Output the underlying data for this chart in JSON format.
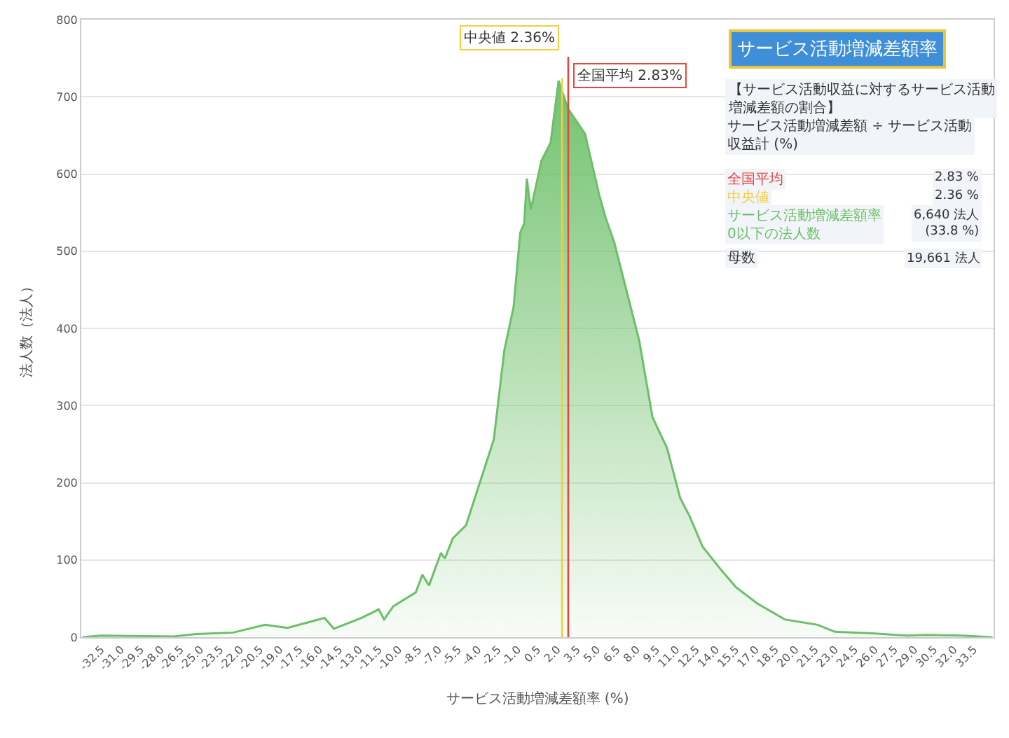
{
  "chart_data": {
    "type": "area",
    "title": "サービス活動増減差額率",
    "xlabel": "サービス活動増減差額率 (%)",
    "ylabel": "法人数（法人）",
    "series": [
      {
        "color": "#6cbf68",
        "x": [
          -33.9,
          -32.5,
          -27,
          -25.3,
          -22.5,
          -20.1,
          -18.4,
          -15.6,
          -14.9,
          -12.8,
          -11.5,
          -11.1,
          -10.4,
          -8.7,
          -8.2,
          -7.7,
          -6.8,
          -6.5,
          -5.9,
          -4.9,
          -3.9,
          -2.8,
          -2.0,
          -1.3,
          -0.8,
          -0.5,
          -0.3,
          0.0,
          0.8,
          1.5,
          2.1,
          2.8,
          4.1,
          5.2,
          5.7,
          6.3,
          8.2,
          9.2,
          10.3,
          11.3,
          12.0,
          13.0,
          14.4,
          15.5,
          17.1,
          19.2,
          21.7,
          23.0,
          25.8,
          28.5,
          29.9,
          32.6,
          34.9
        ],
        "values": [
          0,
          2,
          1,
          4,
          6,
          16,
          12,
          25,
          11,
          25,
          36,
          23,
          40,
          58,
          81,
          67,
          109,
          102,
          128,
          145,
          198,
          256,
          372,
          428,
          524,
          536,
          594,
          554,
          617,
          641,
          721,
          685,
          652,
          571,
          541,
          512,
          384,
          285,
          245,
          180,
          157,
          117,
          87,
          65,
          44,
          23,
          16,
          7,
          5,
          2,
          3,
          2,
          0
        ]
      }
    ],
    "xlim": [
      -34,
      35
    ],
    "ylim": [
      0,
      800
    ],
    "yticks": [
      0,
      100,
      200,
      300,
      400,
      500,
      600,
      700,
      800
    ],
    "xticks": [
      {
        "value": -32.5,
        "label": "-32.5"
      },
      {
        "value": -31,
        "label": "-31.0"
      },
      {
        "value": -29.5,
        "label": "-29.5"
      },
      {
        "value": -28,
        "label": "-28.0"
      },
      {
        "value": -26.5,
        "label": "-26.5"
      },
      {
        "value": -25,
        "label": "-25.0"
      },
      {
        "value": -23.5,
        "label": "-23.5"
      },
      {
        "value": -22,
        "label": "-22.0"
      },
      {
        "value": -20.5,
        "label": "-20.5"
      },
      {
        "value": -19,
        "label": "-19.0"
      },
      {
        "value": -17.5,
        "label": "-17.5"
      },
      {
        "value": -16,
        "label": "-16.0"
      },
      {
        "value": -14.5,
        "label": "-14.5"
      },
      {
        "value": -13,
        "label": "-13.0"
      },
      {
        "value": -11.5,
        "label": "-11.5"
      },
      {
        "value": -10,
        "label": "-10.0"
      },
      {
        "value": -8.5,
        "label": "-8.5"
      },
      {
        "value": -7,
        "label": "-7.0"
      },
      {
        "value": -5.5,
        "label": "-5.5"
      },
      {
        "value": -4,
        "label": "-4.0"
      },
      {
        "value": -2.5,
        "label": "-2.5"
      },
      {
        "value": -1,
        "label": "-1.0"
      },
      {
        "value": 0.5,
        "label": "0.5"
      },
      {
        "value": 2,
        "label": "2.0"
      },
      {
        "value": 3.5,
        "label": "3.5"
      },
      {
        "value": 5,
        "label": "5.0"
      },
      {
        "value": 6.5,
        "label": "6.5"
      },
      {
        "value": 8,
        "label": "8.0"
      },
      {
        "value": 9.5,
        "label": "9.5"
      },
      {
        "value": 11,
        "label": "11.0"
      },
      {
        "value": 12.5,
        "label": "12.5"
      },
      {
        "value": 14,
        "label": "14.0"
      },
      {
        "value": 15.5,
        "label": "15.5"
      },
      {
        "value": 17,
        "label": "17.0"
      },
      {
        "value": 18.5,
        "label": "18.5"
      },
      {
        "value": 20,
        "label": "20.0"
      },
      {
        "value": 21.5,
        "label": "21.5"
      },
      {
        "value": 23,
        "label": "23.0"
      },
      {
        "value": 24.5,
        "label": "24.5"
      },
      {
        "value": 26,
        "label": "26.0"
      },
      {
        "value": 27.5,
        "label": "27.5"
      },
      {
        "value": 29,
        "label": "29.0"
      },
      {
        "value": 30.5,
        "label": "30.5"
      },
      {
        "value": 32,
        "label": "32.0"
      },
      {
        "value": 33.5,
        "label": "33.5"
      }
    ],
    "ref_lines": [
      {
        "axis": "x",
        "value": 2.83,
        "label": "全国平均 2.83%",
        "color": "#e8463c"
      },
      {
        "axis": "x",
        "value": 2.36,
        "label": "中央値 2.36%",
        "color": "#f2cf3a"
      }
    ],
    "annotations": [
      "【サービス活動収益に対するサービス活動増減差額の割合】",
      "サービス活動増減差額 ÷ サービス活動収益計 (%)",
      "全国平均",
      "2.83 %",
      "中央値",
      "2.36 %",
      "サービス活動増減差額率",
      "0以下の法人数",
      "6,640 法人",
      "(33.8 %)",
      "母数",
      "19,661 法人"
    ],
    "grid": "y"
  }
}
